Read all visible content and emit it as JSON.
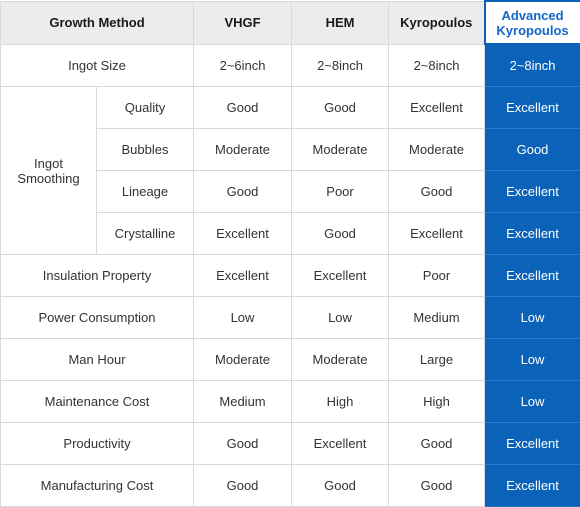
{
  "header": {
    "method": "Growth Method",
    "vhgf": "VHGF",
    "hem": "HEM",
    "kyropoulos": "Kyropoulos",
    "advanced_line1": "Advanced",
    "advanced_line2": "Kyropoulos"
  },
  "group_label": {
    "line1": "Ingot",
    "line2": "Smoothing"
  },
  "rows": [
    {
      "label": "Ingot Size",
      "vhgf": "2~6inch",
      "hem": "2~8inch",
      "kyro": "2~8inch",
      "adv": "2~8inch"
    },
    {
      "label": "Quality",
      "vhgf": "Good",
      "hem": "Good",
      "kyro": "Excellent",
      "adv": "Excellent"
    },
    {
      "label": "Bubbles",
      "vhgf": "Moderate",
      "hem": "Moderate",
      "kyro": "Moderate",
      "adv": "Good"
    },
    {
      "label": "Lineage",
      "vhgf": "Good",
      "hem": "Poor",
      "kyro": "Good",
      "adv": "Excellent"
    },
    {
      "label": "Crystalline",
      "vhgf": "Excellent",
      "hem": "Good",
      "kyro": "Excellent",
      "adv": "Excellent"
    },
    {
      "label": "Insulation Property",
      "vhgf": "Excellent",
      "hem": "Excellent",
      "kyro": "Poor",
      "adv": "Excellent"
    },
    {
      "label": "Power Consumption",
      "vhgf": "Low",
      "hem": "Low",
      "kyro": "Medium",
      "adv": "Low"
    },
    {
      "label": "Man Hour",
      "vhgf": "Moderate",
      "hem": "Moderate",
      "kyro": "Large",
      "adv": "Low"
    },
    {
      "label": "Maintenance Cost",
      "vhgf": "Medium",
      "hem": "High",
      "kyro": "High",
      "adv": "Low"
    },
    {
      "label": "Productivity",
      "vhgf": "Good",
      "hem": "Excellent",
      "kyro": "Good",
      "adv": "Excellent"
    },
    {
      "label": "Manufacturing Cost",
      "vhgf": "Good",
      "hem": "Good",
      "kyro": "Good",
      "adv": "Excellent"
    }
  ],
  "colors": {
    "header_bg": "#ececec",
    "accent_blue": "#0a63b8",
    "accent_text": "#1466c8",
    "border": "#d9d9d9"
  }
}
